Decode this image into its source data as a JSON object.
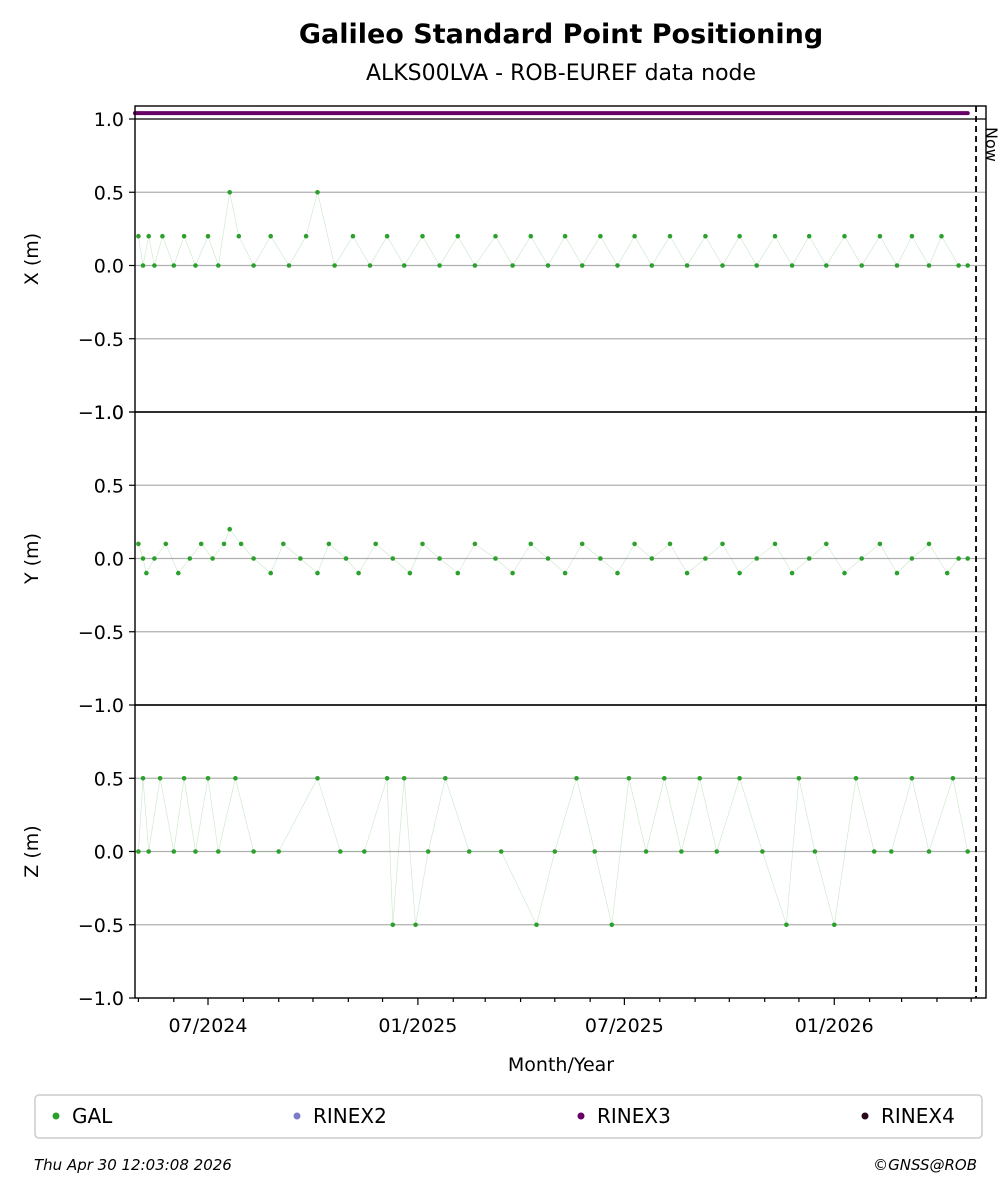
{
  "chart_data": {
    "type": "scatter",
    "title": "Galileo Standard Point Positioning",
    "subtitle": "ALKS00LVA - ROB-EUREF data node",
    "xlabel": "Month/Year",
    "x_tick_labels": [
      "07/2024",
      "01/2025",
      "07/2025",
      "01/2026"
    ],
    "x_range": [
      "2024-04-28",
      "2026-05-14"
    ],
    "now_label": "Now",
    "now_date": "2026-04-30",
    "panels": [
      {
        "ylabel": "X (m)",
        "ylim": [
          -1.0,
          1.0
        ],
        "yticks": [
          "−1.0",
          "−0.5",
          "0.0",
          "0.5",
          "1.0"
        ],
        "grid": true,
        "series": [
          {
            "name": "GAL",
            "color": "#2ca02c",
            "points": [
              [
                "2024-05-01",
                0.2
              ],
              [
                "2024-05-05",
                0.0
              ],
              [
                "2024-05-10",
                0.2
              ],
              [
                "2024-05-15",
                0.0
              ],
              [
                "2024-05-22",
                0.2
              ],
              [
                "2024-06-01",
                0.0
              ],
              [
                "2024-06-10",
                0.2
              ],
              [
                "2024-06-20",
                0.0
              ],
              [
                "2024-07-01",
                0.2
              ],
              [
                "2024-07-10",
                0.0
              ],
              [
                "2024-07-20",
                0.5
              ],
              [
                "2024-07-28",
                0.2
              ],
              [
                "2024-08-10",
                0.0
              ],
              [
                "2024-08-25",
                0.2
              ],
              [
                "2024-09-10",
                0.0
              ],
              [
                "2024-09-25",
                0.2
              ],
              [
                "2024-10-05",
                0.5
              ],
              [
                "2024-10-20",
                0.0
              ],
              [
                "2024-11-05",
                0.2
              ],
              [
                "2024-11-20",
                0.0
              ],
              [
                "2024-12-05",
                0.2
              ],
              [
                "2024-12-20",
                0.0
              ],
              [
                "2025-01-05",
                0.2
              ],
              [
                "2025-01-20",
                0.0
              ],
              [
                "2025-02-05",
                0.2
              ],
              [
                "2025-02-20",
                0.0
              ],
              [
                "2025-03-10",
                0.2
              ],
              [
                "2025-03-25",
                0.0
              ],
              [
                "2025-04-10",
                0.2
              ],
              [
                "2025-04-25",
                0.0
              ],
              [
                "2025-05-10",
                0.2
              ],
              [
                "2025-05-25",
                0.0
              ],
              [
                "2025-06-10",
                0.2
              ],
              [
                "2025-06-25",
                0.0
              ],
              [
                "2025-07-10",
                0.2
              ],
              [
                "2025-07-25",
                0.0
              ],
              [
                "2025-08-10",
                0.2
              ],
              [
                "2025-08-25",
                0.0
              ],
              [
                "2025-09-10",
                0.2
              ],
              [
                "2025-09-25",
                0.0
              ],
              [
                "2025-10-10",
                0.2
              ],
              [
                "2025-10-25",
                0.0
              ],
              [
                "2025-11-10",
                0.2
              ],
              [
                "2025-11-25",
                0.0
              ],
              [
                "2025-12-10",
                0.2
              ],
              [
                "2025-12-25",
                0.0
              ],
              [
                "2026-01-10",
                0.2
              ],
              [
                "2026-01-25",
                0.0
              ],
              [
                "2026-02-10",
                0.2
              ],
              [
                "2026-02-25",
                0.0
              ],
              [
                "2026-03-10",
                0.2
              ],
              [
                "2026-03-25",
                0.0
              ],
              [
                "2026-04-05",
                0.2
              ],
              [
                "2026-04-20",
                0.0
              ],
              [
                "2026-04-28",
                0.0
              ]
            ]
          },
          {
            "name": "RINEX3",
            "color": "#660066",
            "constant_y": 1.04,
            "range": [
              "2024-04-28",
              "2026-04-28"
            ]
          }
        ]
      },
      {
        "ylabel": "Y (m)",
        "ylim": [
          -1.0,
          1.0
        ],
        "yticks": [
          "−1.0",
          "−0.5",
          "0.0",
          "0.5",
          "1.0"
        ],
        "grid": true,
        "series": [
          {
            "name": "GAL",
            "color": "#2ca02c",
            "points": [
              [
                "2024-05-01",
                0.1
              ],
              [
                "2024-05-05",
                0.0
              ],
              [
                "2024-05-08",
                -0.1
              ],
              [
                "2024-05-15",
                0.0
              ],
              [
                "2024-05-25",
                0.1
              ],
              [
                "2024-06-05",
                -0.1
              ],
              [
                "2024-06-15",
                0.0
              ],
              [
                "2024-06-25",
                0.1
              ],
              [
                "2024-07-05",
                0.0
              ],
              [
                "2024-07-15",
                0.1
              ],
              [
                "2024-07-20",
                0.2
              ],
              [
                "2024-07-30",
                0.1
              ],
              [
                "2024-08-10",
                0.0
              ],
              [
                "2024-08-25",
                -0.1
              ],
              [
                "2024-09-05",
                0.1
              ],
              [
                "2024-09-20",
                0.0
              ],
              [
                "2024-10-05",
                -0.1
              ],
              [
                "2024-10-15",
                0.1
              ],
              [
                "2024-10-30",
                0.0
              ],
              [
                "2024-11-10",
                -0.1
              ],
              [
                "2024-11-25",
                0.1
              ],
              [
                "2024-12-10",
                0.0
              ],
              [
                "2024-12-25",
                -0.1
              ],
              [
                "2025-01-05",
                0.1
              ],
              [
                "2025-01-20",
                0.0
              ],
              [
                "2025-02-05",
                -0.1
              ],
              [
                "2025-02-20",
                0.1
              ],
              [
                "2025-03-10",
                0.0
              ],
              [
                "2025-03-25",
                -0.1
              ],
              [
                "2025-04-10",
                0.1
              ],
              [
                "2025-04-25",
                0.0
              ],
              [
                "2025-05-10",
                -0.1
              ],
              [
                "2025-05-25",
                0.1
              ],
              [
                "2025-06-10",
                0.0
              ],
              [
                "2025-06-25",
                -0.1
              ],
              [
                "2025-07-10",
                0.1
              ],
              [
                "2025-07-25",
                0.0
              ],
              [
                "2025-08-10",
                0.1
              ],
              [
                "2025-08-25",
                -0.1
              ],
              [
                "2025-09-10",
                0.0
              ],
              [
                "2025-09-25",
                0.1
              ],
              [
                "2025-10-10",
                -0.1
              ],
              [
                "2025-10-25",
                0.0
              ],
              [
                "2025-11-10",
                0.1
              ],
              [
                "2025-11-25",
                -0.1
              ],
              [
                "2025-12-10",
                0.0
              ],
              [
                "2025-12-25",
                0.1
              ],
              [
                "2026-01-10",
                -0.1
              ],
              [
                "2026-01-25",
                0.0
              ],
              [
                "2026-02-10",
                0.1
              ],
              [
                "2026-02-25",
                -0.1
              ],
              [
                "2026-03-10",
                0.0
              ],
              [
                "2026-03-25",
                0.1
              ],
              [
                "2026-04-10",
                -0.1
              ],
              [
                "2026-04-20",
                0.0
              ],
              [
                "2026-04-28",
                0.0
              ]
            ]
          }
        ]
      },
      {
        "ylabel": "Z (m)",
        "ylim": [
          -1.0,
          1.0
        ],
        "yticks": [
          "−1.0",
          "−0.5",
          "0.0",
          "0.5"
        ],
        "grid": true,
        "series": [
          {
            "name": "GAL",
            "color": "#2ca02c",
            "points": [
              [
                "2024-05-01",
                0.0
              ],
              [
                "2024-05-05",
                0.5
              ],
              [
                "2024-05-10",
                0.0
              ],
              [
                "2024-05-20",
                0.5
              ],
              [
                "2024-06-01",
                0.0
              ],
              [
                "2024-06-10",
                0.5
              ],
              [
                "2024-06-20",
                0.0
              ],
              [
                "2024-07-01",
                0.5
              ],
              [
                "2024-07-10",
                0.0
              ],
              [
                "2024-07-25",
                0.5
              ],
              [
                "2024-08-10",
                0.0
              ],
              [
                "2024-09-01",
                0.0
              ],
              [
                "2024-10-05",
                0.5
              ],
              [
                "2024-10-25",
                0.0
              ],
              [
                "2024-11-15",
                0.0
              ],
              [
                "2024-12-05",
                0.5
              ],
              [
                "2024-12-10",
                -0.5
              ],
              [
                "2024-12-20",
                0.5
              ],
              [
                "2024-12-30",
                -0.5
              ],
              [
                "2025-01-10",
                0.0
              ],
              [
                "2025-01-25",
                0.5
              ],
              [
                "2025-02-15",
                0.0
              ],
              [
                "2025-03-15",
                0.0
              ],
              [
                "2025-04-15",
                -0.5
              ],
              [
                "2025-05-01",
                0.0
              ],
              [
                "2025-05-20",
                0.5
              ],
              [
                "2025-06-05",
                0.0
              ],
              [
                "2025-06-20",
                -0.5
              ],
              [
                "2025-07-05",
                0.5
              ],
              [
                "2025-07-20",
                0.0
              ],
              [
                "2025-08-05",
                0.5
              ],
              [
                "2025-08-20",
                0.0
              ],
              [
                "2025-09-05",
                0.5
              ],
              [
                "2025-09-20",
                0.0
              ],
              [
                "2025-10-10",
                0.5
              ],
              [
                "2025-10-30",
                0.0
              ],
              [
                "2025-11-20",
                -0.5
              ],
              [
                "2025-12-01",
                0.5
              ],
              [
                "2025-12-15",
                0.0
              ],
              [
                "2026-01-01",
                -0.5
              ],
              [
                "2026-01-20",
                0.5
              ],
              [
                "2026-02-05",
                0.0
              ],
              [
                "2026-02-20",
                0.0
              ],
              [
                "2026-03-10",
                0.5
              ],
              [
                "2026-03-25",
                0.0
              ],
              [
                "2026-04-15",
                0.5
              ],
              [
                "2026-04-28",
                0.0
              ]
            ]
          }
        ]
      }
    ],
    "legend": [
      {
        "label": "GAL",
        "color": "#2ca02c"
      },
      {
        "label": "RINEX2",
        "color": "#7b7bc8"
      },
      {
        "label": "RINEX3",
        "color": "#660066"
      },
      {
        "label": "RINEX4",
        "color": "#2a0a1a"
      }
    ],
    "legend_position": "bottom"
  },
  "footer": {
    "timestamp": "Thu Apr 30 12:03:08 2026",
    "credit": "©GNSS@ROB"
  }
}
